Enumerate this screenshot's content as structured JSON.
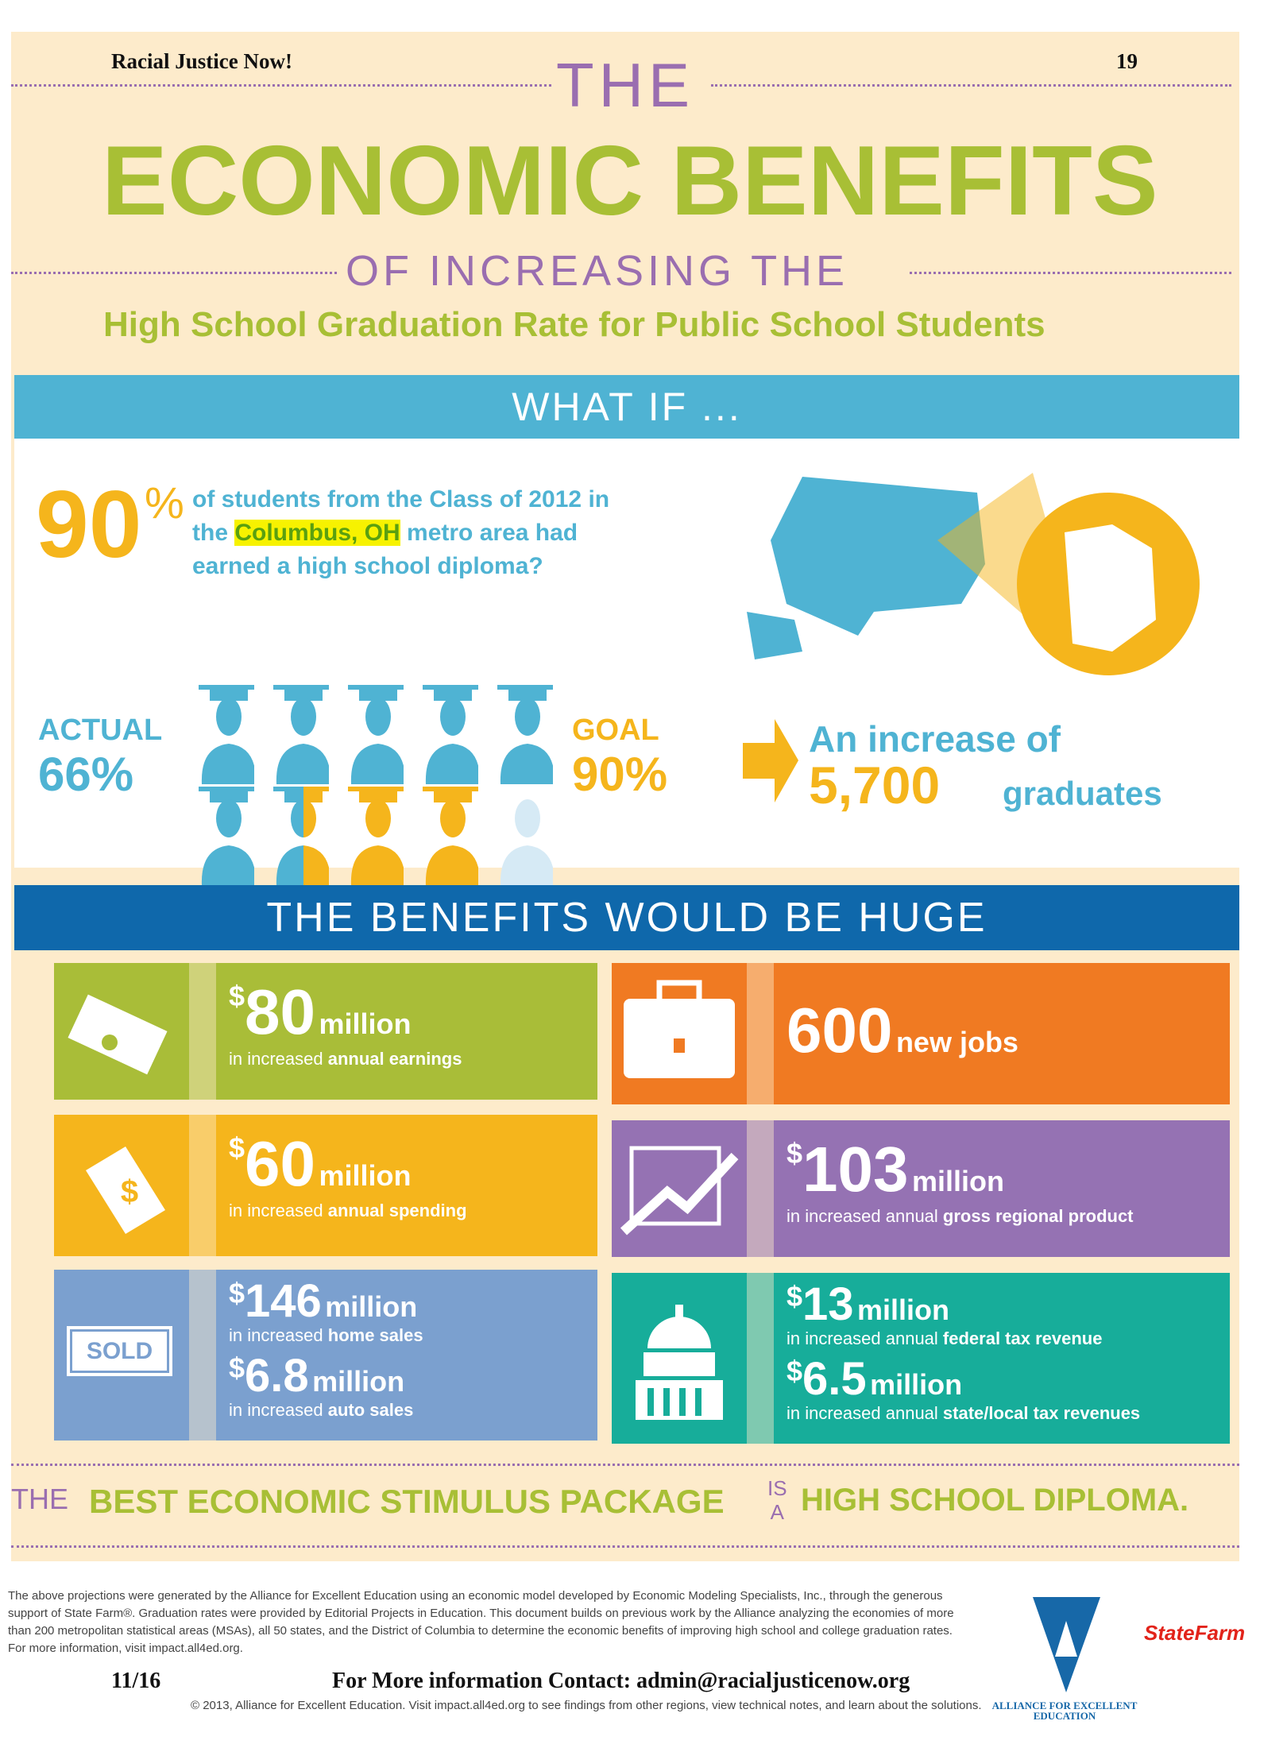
{
  "header": {
    "org": "Racial Justice Now!",
    "page": "19"
  },
  "title": {
    "the": "THE",
    "main": "ECONOMIC BENEFITS",
    "of": "OF INCREASING THE",
    "sub": "High School Graduation Rate for Public School Students"
  },
  "whatif": {
    "heading": "WHAT IF ...",
    "pct": "90",
    "pct_sign": "%",
    "q1": "of students from the Class of 2012 in",
    "q2_pre": "the ",
    "q2_hl": "Columbus, OH",
    "q2_post": " metro area had",
    "q3": "earned a high school diploma?"
  },
  "grad": {
    "actual_label": "ACTUAL",
    "actual_value": "66%",
    "goal_label": "GOAL",
    "goal_value": "90%",
    "inc_label": "An increase of",
    "inc_value": "5,700",
    "inc_unit": "graduates",
    "actual_fraction": 0.66,
    "goal_fraction": 0.9
  },
  "benefits": {
    "heading": "THE BENEFITS WOULD BE HUGE",
    "earnings": {
      "dollar": "$",
      "value": "80",
      "unit": "million",
      "pre": "in increased ",
      "bold": "annual earnings",
      "color": "#a9bd38"
    },
    "jobs": {
      "value": "600",
      "unit": "new jobs",
      "color": "#f07a22"
    },
    "spending": {
      "dollar": "$",
      "value": "60",
      "unit": "million",
      "pre": "in increased ",
      "bold": "annual spending",
      "color": "#f5b51c"
    },
    "grp": {
      "dollar": "$",
      "value": "103",
      "unit": "million",
      "pre": "in increased annual ",
      "bold": "gross regional product",
      "color": "#9572b3"
    },
    "home": {
      "dollar": "$",
      "value": "146",
      "unit": "million",
      "pre": "in increased ",
      "bold": "home sales",
      "value2": "6.8",
      "unit2": "million",
      "pre2": "in increased ",
      "bold2": "auto sales",
      "sold": "SOLD",
      "color": "#7ba0cf"
    },
    "tax": {
      "dollar": "$",
      "value": "13",
      "unit": "million",
      "pre": "in increased annual ",
      "bold": "federal tax revenue",
      "value2": "6.5",
      "unit2": "million",
      "pre2": "in increased annual ",
      "bold2": "state/local tax revenues",
      "color": "#17ad9a"
    }
  },
  "tagline": {
    "the": "THE",
    "a": "BEST ECONOMIC STIMULUS PACKAGE",
    "is": "IS",
    "a2": "A",
    "b": "HIGH SCHOOL DIPLOMA."
  },
  "footer": {
    "note": "The above projections were generated by the Alliance for Excellent Education using an economic model developed by Economic Modeling Specialists, Inc., through the generous support of State Farm®. Graduation rates were provided by Editorial Projects in Education. This document builds on previous work by the Alliance analyzing the economies of more than 200 metropolitan statistical areas (MSAs), all 50 states, and the District of Columbia to determine the economic benefits of improving high school and college graduation rates. For more information, visit impact.all4ed.org.",
    "date": "11/16",
    "contact": "For More information Contact: admin@racialjusticenow.org",
    "copyright": "© 2013, Alliance for Excellent Education. Visit impact.all4ed.org to see findings from other regions, view technical notes, and learn about the solutions.",
    "alliance": "ALLIANCE FOR EXCELLENT EDUCATION",
    "statefarm": "StateFarm"
  }
}
